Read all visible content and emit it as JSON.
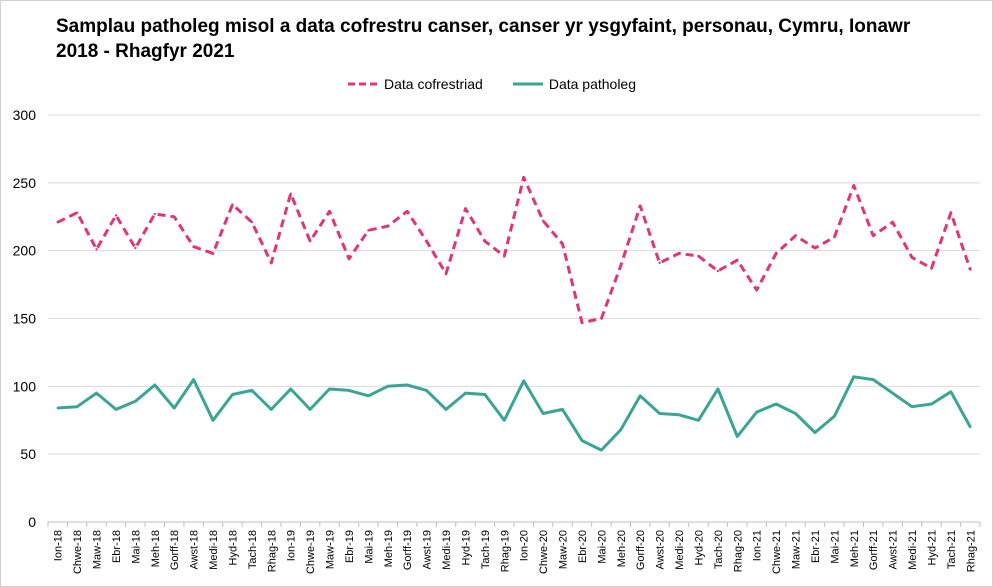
{
  "chart_data": {
    "type": "line",
    "title": "Samplau patholeg misol a data cofrestru canser, canser yr ysgyfaint, personau, Cymru, Ionawr 2018 - Rhagfyr 2021",
    "xlabel": "",
    "ylabel": "",
    "ylim": [
      0,
      300
    ],
    "yticks": [
      "0",
      "50",
      "100",
      "150",
      "200",
      "250",
      "300"
    ],
    "grid": true,
    "legend_position": "top",
    "categories": [
      "Ion-18",
      "Chwe-18",
      "Maw-18",
      "Ebr-18",
      "Mai-18",
      "Meh-18",
      "Gorff-18",
      "Awst-18",
      "Medi-18",
      "Hyd-18",
      "Tach-18",
      "Rhag-18",
      "Ion-19",
      "Chwe-19",
      "Maw-19",
      "Ebr-19",
      "Mai-19",
      "Meh-19",
      "Gorff-19",
      "Awst-19",
      "Medi-19",
      "Hyd-19",
      "Tach-19",
      "Rhag-19",
      "Ion-20",
      "Chwe-20",
      "Maw-20",
      "Ebr-20",
      "Mai-20",
      "Meh-20",
      "Gorff-20",
      "Awst-20",
      "Medi-20",
      "Hyd-20",
      "Tach-20",
      "Rhag-20",
      "Ion-21",
      "Chwe-21",
      "Maw-21",
      "Ebr-21",
      "Mai-21",
      "Meh-21",
      "Gorff-21",
      "Awst-21",
      "Medi-21",
      "Hyd-21",
      "Tach-21",
      "Rhag-21"
    ],
    "series": [
      {
        "name": "Data cofrestriad",
        "color": "#e0357a",
        "style": "dashed",
        "values": [
          221,
          228,
          201,
          226,
          202,
          227,
          225,
          203,
          198,
          234,
          221,
          191,
          242,
          207,
          229,
          194,
          215,
          218,
          229,
          207,
          183,
          231,
          207,
          196,
          254,
          222,
          205,
          147,
          150,
          189,
          233,
          191,
          198,
          196,
          185,
          193,
          171,
          198,
          211,
          202,
          210,
          248,
          211,
          221,
          195,
          187,
          228,
          186
        ]
      },
      {
        "name": "Data patholeg",
        "color": "#3aa495",
        "style": "solid",
        "values": [
          84,
          85,
          95,
          83,
          89,
          101,
          84,
          105,
          75,
          94,
          97,
          83,
          98,
          83,
          98,
          97,
          93,
          100,
          101,
          97,
          83,
          95,
          94,
          75,
          104,
          80,
          83,
          60,
          53,
          68,
          93,
          80,
          79,
          75,
          98,
          63,
          81,
          87,
          80,
          66,
          78,
          107,
          105,
          95,
          85,
          87,
          96,
          70
        ]
      }
    ]
  }
}
